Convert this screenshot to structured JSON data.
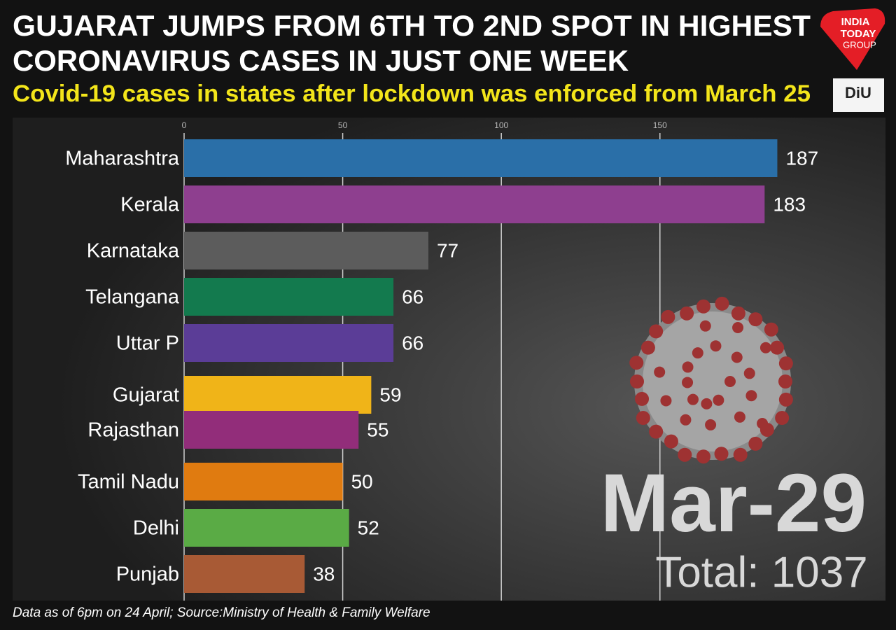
{
  "chart_data": {
    "type": "bar",
    "orientation": "horizontal",
    "title": [
      "GUJARAT JUMPS FROM 6TH TO 2ND SPOT IN HIGHEST",
      "CORONAVIRUS CASES IN JUST ONE WEEK"
    ],
    "subtitle": "Covid-19 cases in states after lockdown was enforced from March 25",
    "categories": [
      "Maharashtra",
      "Kerala",
      "Karnataka",
      "Telangana",
      "Uttar P",
      "Gujarat",
      "Rajasthan",
      "Tamil Nadu",
      "Delhi",
      "Punjab"
    ],
    "values": [
      187,
      183,
      77,
      66,
      66,
      59,
      55,
      50,
      52,
      38
    ],
    "colors": [
      "#2a6fa8",
      "#8e3f8f",
      "#5c5c5c",
      "#137a4e",
      "#5b3d97",
      "#f0b418",
      "#922d7a",
      "#e07b10",
      "#5aab45",
      "#a85a35"
    ],
    "xlim": [
      0,
      220
    ],
    "xticks": [
      0,
      50,
      100,
      150
    ],
    "grid": true,
    "date_label": "Mar-29",
    "total_label": "Total: 1037",
    "source": "Data as of 6pm on 24 April; Source:Ministry of Health & Family Welfare"
  },
  "logos": {
    "india_today": [
      "INDIA",
      "TODAY",
      "GROUP"
    ],
    "diu": "DiU"
  }
}
